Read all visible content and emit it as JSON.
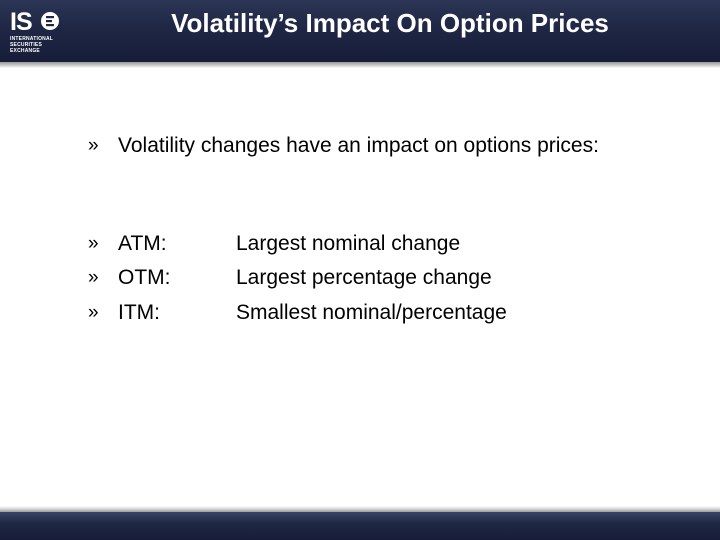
{
  "header": {
    "title": "Volatility’s Impact On Option Prices",
    "logo": {
      "mark": "ISE",
      "lines": [
        "INTERNATIONAL",
        "SECURITIES",
        "EXCHANGE"
      ]
    }
  },
  "content": {
    "bullet_glyph": "»",
    "intro": "Volatility changes have an impact on options prices:",
    "items": [
      {
        "term": "ATM:",
        "desc": "Largest nominal change"
      },
      {
        "term": "OTM:",
        "desc": "Largest percentage change"
      },
      {
        "term": "ITM:",
        "desc": "Smallest nominal/percentage"
      }
    ]
  },
  "colors": {
    "header_bg": "#1f2745",
    "text": "#000000",
    "title_text": "#ffffff"
  }
}
